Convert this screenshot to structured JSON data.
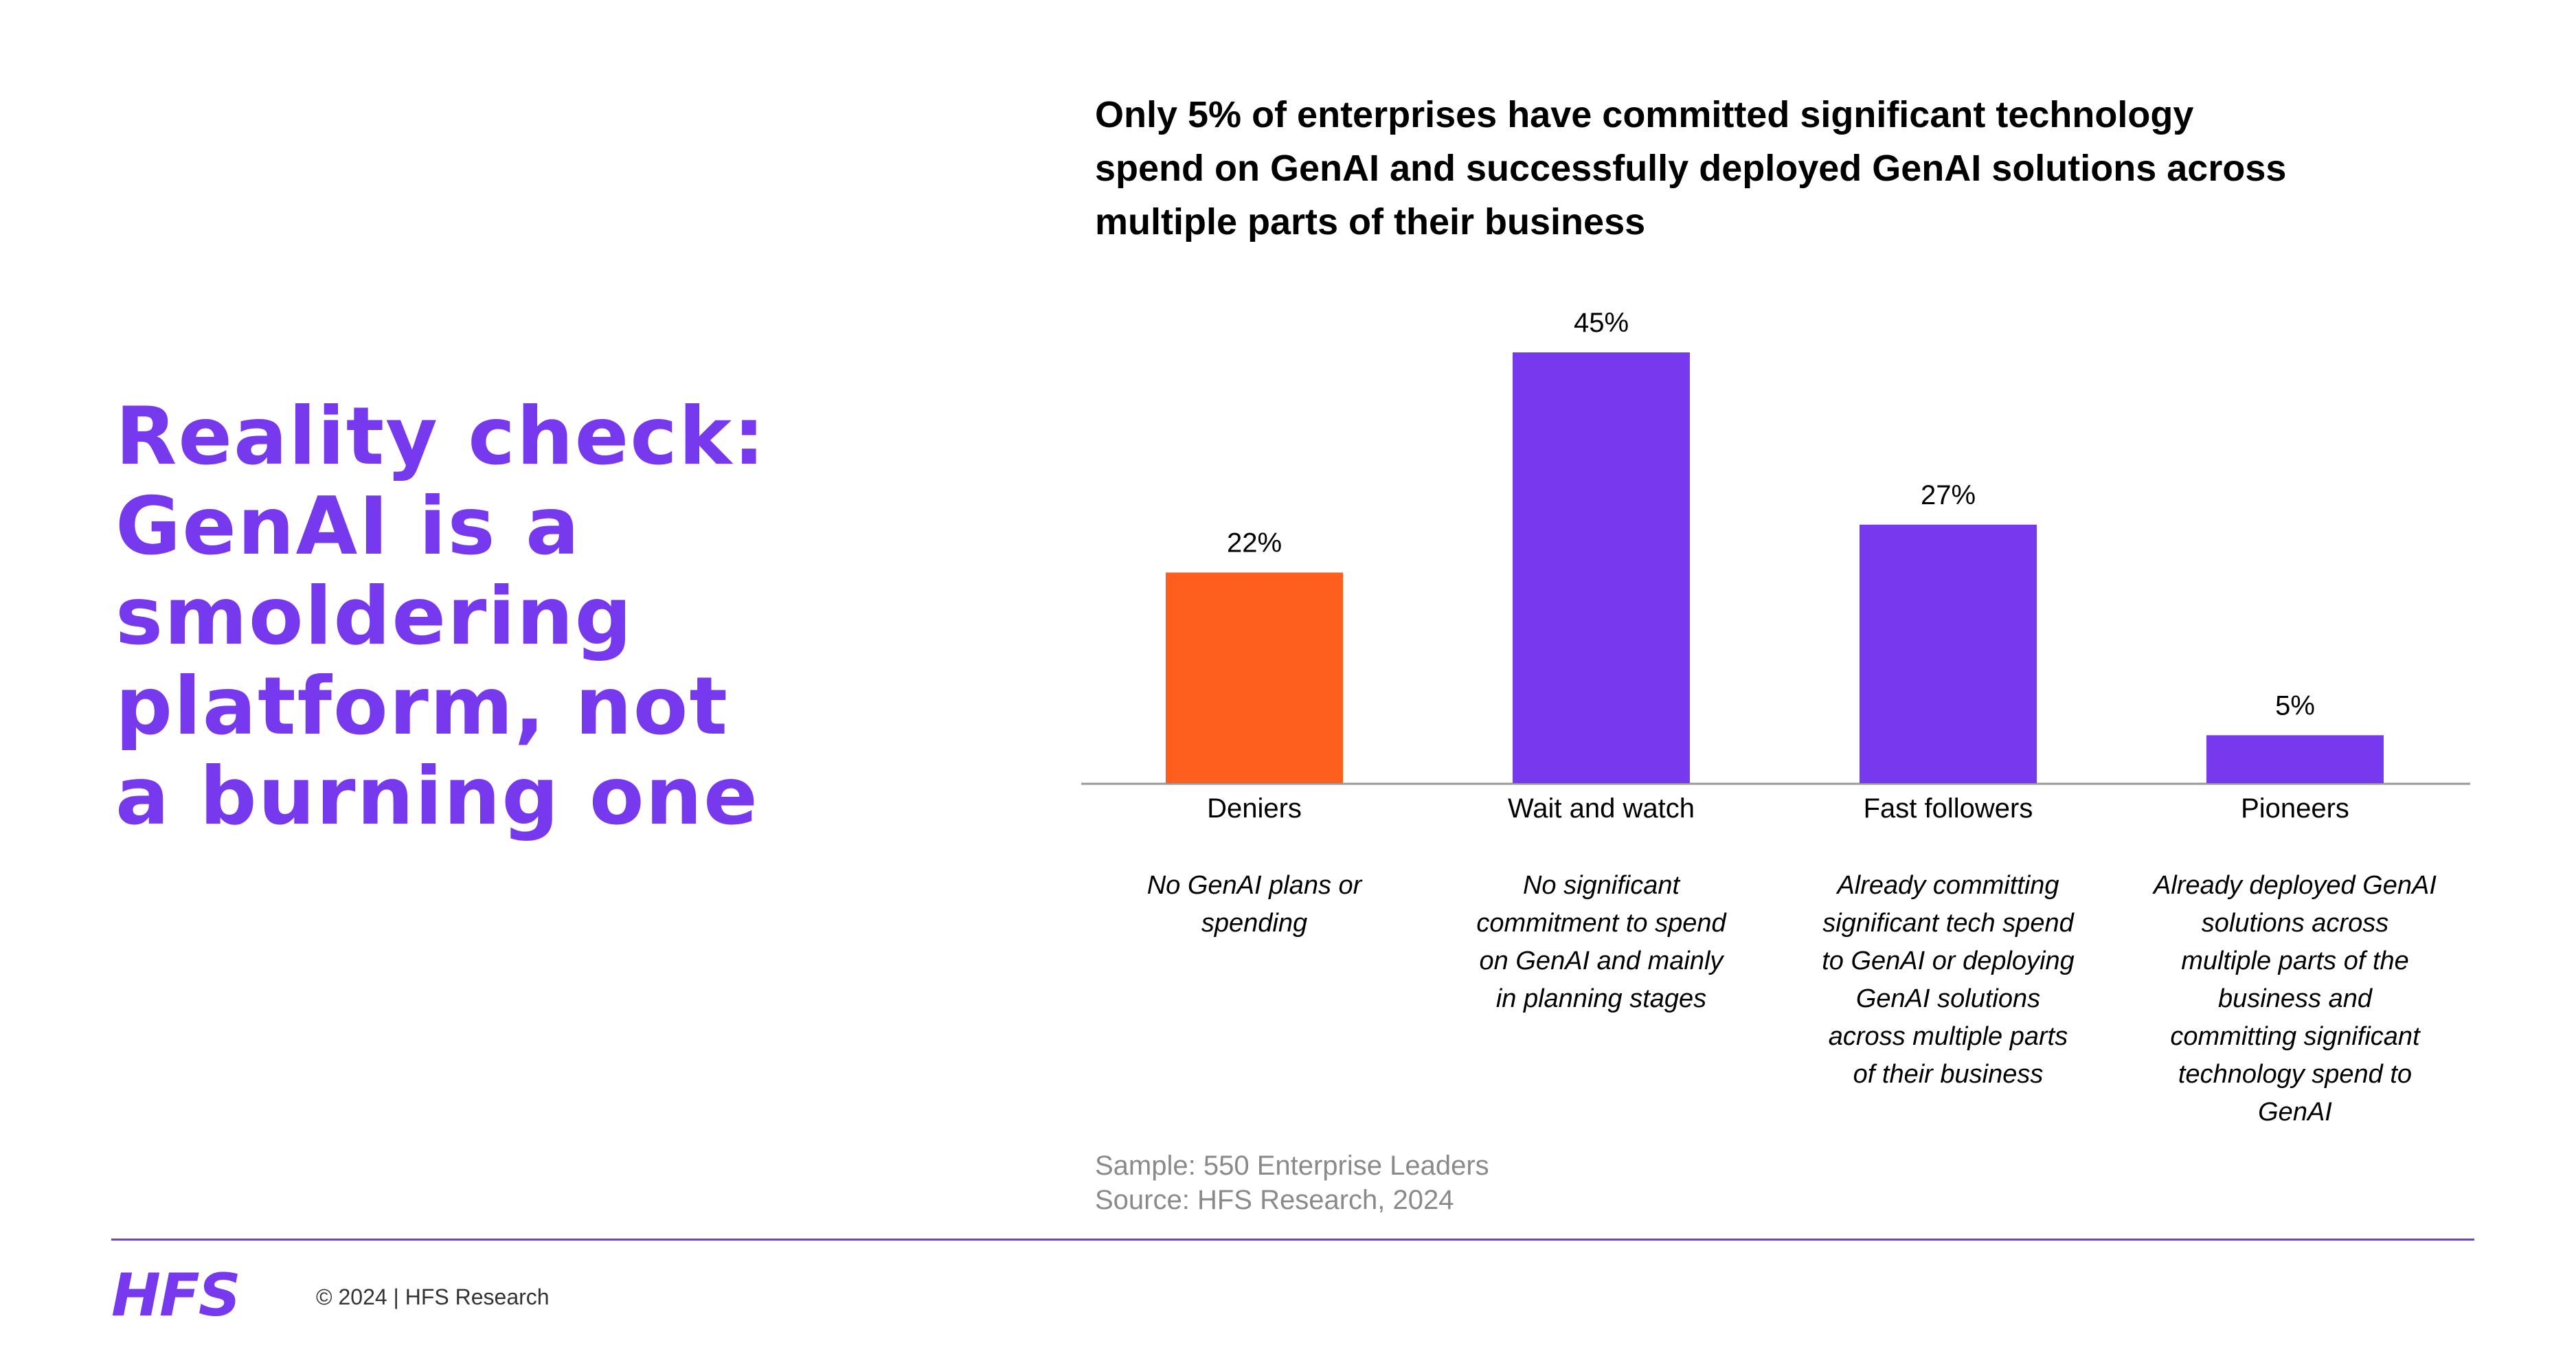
{
  "headline": {
    "lines": [
      "Reality check:",
      "GenAI is a",
      "smoldering",
      "platform, not",
      "a burning one"
    ]
  },
  "chart_title_lines": [
    "Only 5% of enterprises have committed significant technology",
    "spend on GenAI and successfully deployed GenAI solutions across",
    "multiple parts of their business"
  ],
  "chart_data": {
    "type": "bar",
    "title": "Only 5% of enterprises have committed significant technology spend on GenAI and successfully deployed GenAI solutions across multiple parts of their business",
    "categories": [
      "Deniers",
      "Wait and watch",
      "Fast followers",
      "Pioneers"
    ],
    "values": [
      22,
      45,
      27,
      5
    ],
    "data_labels": [
      "22%",
      "45%",
      "27%",
      "5%"
    ],
    "unit": "%",
    "ylim": [
      0,
      45
    ],
    "grid": false,
    "colors": [
      "#ff5e1f",
      "#7639ee",
      "#7639ee",
      "#7639ee"
    ],
    "descriptions": [
      [
        "No GenAI plans or",
        "spending"
      ],
      [
        "No significant",
        "commitment to spend",
        "on GenAI and mainly",
        "in planning stages"
      ],
      [
        "Already committing",
        "significant tech spend",
        "to GenAI or deploying",
        "GenAI solutions",
        "across multiple parts",
        "of their business"
      ],
      [
        "Already deployed GenAI",
        "solutions across",
        "multiple parts of the",
        "business and",
        "committing significant",
        "technology spend to",
        "GenAI"
      ]
    ]
  },
  "source": {
    "sample": "Sample: 550 Enterprise Leaders",
    "source": "Source: HFS Research, 2024"
  },
  "footer": {
    "logo": "HFS",
    "copyright": "© 2024 | HFS Research"
  }
}
